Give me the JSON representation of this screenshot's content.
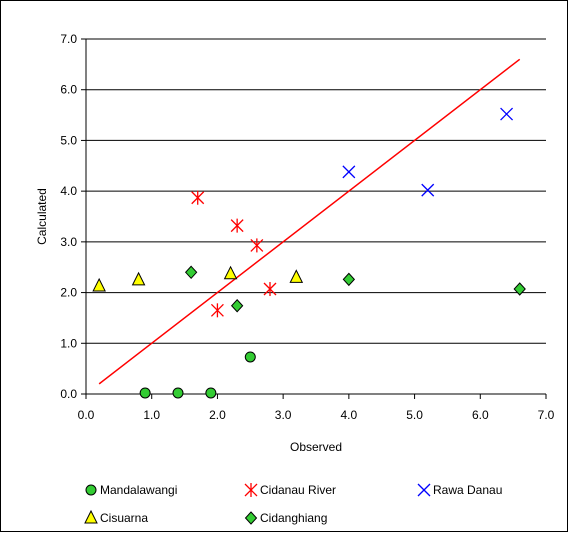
{
  "chart_data": {
    "type": "scatter",
    "title": "",
    "xlabel": "Observed",
    "ylabel": "Calculated",
    "xlim": [
      0.0,
      7.0
    ],
    "ylim": [
      0.0,
      7.0
    ],
    "xticks": [
      "0.0",
      "1.0",
      "2.0",
      "3.0",
      "4.0",
      "5.0",
      "6.0",
      "7.0"
    ],
    "yticks": [
      "0.0",
      "1.0",
      "2.0",
      "3.0",
      "4.0",
      "5.0",
      "6.0",
      "7.0"
    ],
    "grid": "horizontal",
    "legend_position": "bottom",
    "series": [
      {
        "name": "Mandalawangi",
        "marker": "circle",
        "color": "#33cc33",
        "points": [
          [
            0.9,
            0.02
          ],
          [
            1.4,
            0.02
          ],
          [
            1.9,
            0.02
          ],
          [
            2.5,
            0.73
          ]
        ]
      },
      {
        "name": "Cidanau River",
        "marker": "asterisk",
        "color": "#ff0000",
        "points": [
          [
            1.7,
            3.87
          ],
          [
            2.3,
            3.32
          ],
          [
            2.6,
            2.93
          ],
          [
            2.8,
            2.07
          ],
          [
            2.0,
            1.65
          ]
        ]
      },
      {
        "name": "Rawa Danau",
        "marker": "cross",
        "color": "#0000ff",
        "points": [
          [
            4.0,
            4.38
          ],
          [
            5.2,
            4.02
          ],
          [
            6.4,
            5.52
          ]
        ]
      },
      {
        "name": "Cisuarna",
        "marker": "triangle",
        "color": "#ffff00",
        "points": [
          [
            0.2,
            2.13
          ],
          [
            0.8,
            2.25
          ],
          [
            2.2,
            2.37
          ],
          [
            3.2,
            2.3
          ]
        ]
      },
      {
        "name": "Cidanghiang",
        "marker": "diamond",
        "color": "#33cc33",
        "points": [
          [
            1.6,
            2.4
          ],
          [
            2.3,
            1.74
          ],
          [
            4.0,
            2.26
          ],
          [
            6.6,
            2.07
          ]
        ]
      }
    ],
    "fit_line": {
      "color": "#ff0000",
      "points": [
        [
          0.2,
          0.2
        ],
        [
          6.6,
          6.6
        ]
      ]
    }
  }
}
